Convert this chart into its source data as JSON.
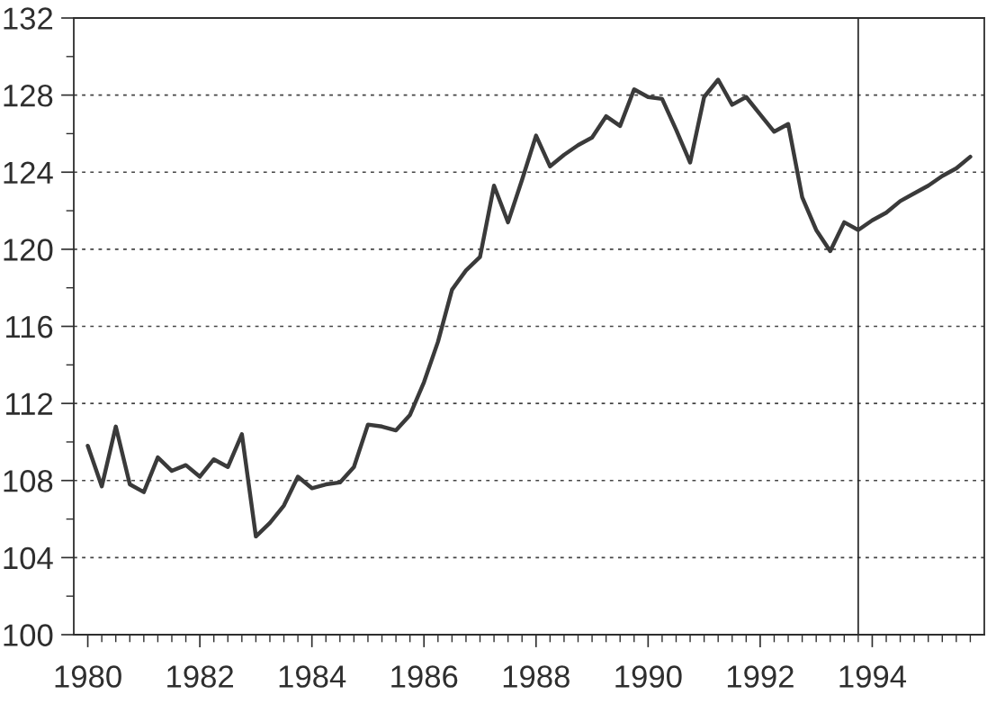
{
  "chart_data": {
    "type": "line",
    "x": [
      1980,
      1980.25,
      1980.5,
      1980.75,
      1981,
      1981.25,
      1981.5,
      1981.75,
      1982,
      1982.25,
      1982.5,
      1982.75,
      1983,
      1983.25,
      1983.5,
      1983.75,
      1984,
      1984.25,
      1984.5,
      1984.75,
      1985,
      1985.25,
      1985.5,
      1985.75,
      1986,
      1986.25,
      1986.5,
      1986.75,
      1987,
      1987.25,
      1987.5,
      1987.75,
      1988,
      1988.25,
      1988.5,
      1988.75,
      1989,
      1989.25,
      1989.5,
      1989.75,
      1990,
      1990.25,
      1990.5,
      1990.75,
      1991,
      1991.25,
      1991.5,
      1991.75,
      1992,
      1992.25,
      1992.5,
      1992.75,
      1993,
      1993.25,
      1993.5,
      1993.75,
      1994,
      1994.25,
      1994.5,
      1994.75,
      1995,
      1995.25,
      1995.5,
      1995.75
    ],
    "series": [
      {
        "color": "#3a3a3a",
        "values": [
          109.8,
          107.7,
          110.8,
          107.8,
          107.4,
          109.2,
          108.5,
          108.8,
          108.2,
          109.1,
          108.7,
          110.4,
          105.1,
          105.8,
          106.7,
          108.2,
          107.6,
          107.8,
          107.9,
          108.7,
          110.9,
          110.8,
          110.6,
          111.4,
          113.1,
          115.2,
          117.9,
          118.9,
          119.6,
          123.3,
          121.4,
          123.6,
          125.9,
          124.3,
          124.9,
          125.4,
          125.8,
          126.9,
          126.4,
          128.3,
          127.9,
          127.8,
          126.2,
          124.5,
          127.9,
          128.8,
          127.5,
          127.9,
          127.0,
          126.1,
          126.5,
          122.7,
          121.0,
          119.9,
          121.4,
          121.0,
          121.5,
          121.9,
          122.5,
          122.9,
          123.3,
          123.8,
          124.2,
          124.8
        ]
      }
    ],
    "xlim": [
      1979.75,
      1996.0
    ],
    "xticks": [
      1980,
      {
        "value": 1980.25,
        "label": null
      },
      {
        "value": 1980.5,
        "label": null
      },
      {
        "value": 1980.75,
        "label": null
      },
      {
        "value": 1981,
        "label": null
      },
      {
        "value": 1981.25,
        "label": null
      },
      {
        "value": 1981.5,
        "label": null
      },
      {
        "value": 1981.75,
        "label": null
      },
      1982,
      {
        "value": 1982.25,
        "label": null
      },
      {
        "value": 1982.5,
        "label": null
      },
      {
        "value": 1982.75,
        "label": null
      },
      {
        "value": 1983,
        "label": null
      },
      {
        "value": 1983.25,
        "label": null
      },
      {
        "value": 1983.5,
        "label": null
      },
      {
        "value": 1983.75,
        "label": null
      },
      1984,
      {
        "value": 1984.25,
        "label": null
      },
      {
        "value": 1984.5,
        "label": null
      },
      {
        "value": 1984.75,
        "label": null
      },
      {
        "value": 1985,
        "label": null
      },
      {
        "value": 1985.25,
        "label": null
      },
      {
        "value": 1985.5,
        "label": null
      },
      {
        "value": 1985.75,
        "label": null
      },
      1986,
      {
        "value": 1986.25,
        "label": null
      },
      {
        "value": 1986.5,
        "label": null
      },
      {
        "value": 1986.75,
        "label": null
      },
      {
        "value": 1987,
        "label": null
      },
      {
        "value": 1987.25,
        "label": null
      },
      {
        "value": 1987.5,
        "label": null
      },
      {
        "value": 1987.75,
        "label": null
      },
      1988,
      {
        "value": 1988.25,
        "label": null
      },
      {
        "value": 1988.5,
        "label": null
      },
      {
        "value": 1988.75,
        "label": null
      },
      {
        "value": 1989,
        "label": null
      },
      {
        "value": 1989.25,
        "label": null
      },
      {
        "value": 1989.5,
        "label": null
      },
      {
        "value": 1989.75,
        "label": null
      },
      1990,
      {
        "value": 1990.25,
        "label": null
      },
      {
        "value": 1990.5,
        "label": null
      },
      {
        "value": 1990.75,
        "label": null
      },
      {
        "value": 1991,
        "label": null
      },
      {
        "value": 1991.25,
        "label": null
      },
      {
        "value": 1991.5,
        "label": null
      },
      {
        "value": 1991.75,
        "label": null
      },
      1992,
      {
        "value": 1992.25,
        "label": null
      },
      {
        "value": 1992.5,
        "label": null
      },
      {
        "value": 1992.75,
        "label": null
      },
      {
        "value": 1993,
        "label": null
      },
      {
        "value": 1993.25,
        "label": null
      },
      {
        "value": 1993.5,
        "label": null
      },
      {
        "value": 1993.75,
        "label": null
      },
      1994,
      {
        "value": 1994.25,
        "label": null
      },
      {
        "value": 1994.5,
        "label": null
      },
      {
        "value": 1994.75,
        "label": null
      },
      {
        "value": 1995,
        "label": null
      },
      {
        "value": 1995.25,
        "label": null
      },
      {
        "value": 1995.5,
        "label": null
      },
      {
        "value": 1995.75,
        "label": null
      }
    ],
    "ylim": [
      100,
      132
    ],
    "yticks": [
      100,
      {
        "value": 102,
        "label": null
      },
      104,
      {
        "value": 106,
        "label": null
      },
      108,
      {
        "value": 110,
        "label": null
      },
      112,
      {
        "value": 114,
        "label": null
      },
      116,
      {
        "value": 118,
        "label": null
      },
      120,
      {
        "value": 122,
        "label": null
      },
      124,
      {
        "value": 126,
        "label": null
      },
      128,
      {
        "value": 130,
        "label": null
      },
      132
    ],
    "grid": "y",
    "ref_lines": [
      {
        "axis": "x",
        "value": 1993.75,
        "color": "#222222"
      }
    ]
  }
}
